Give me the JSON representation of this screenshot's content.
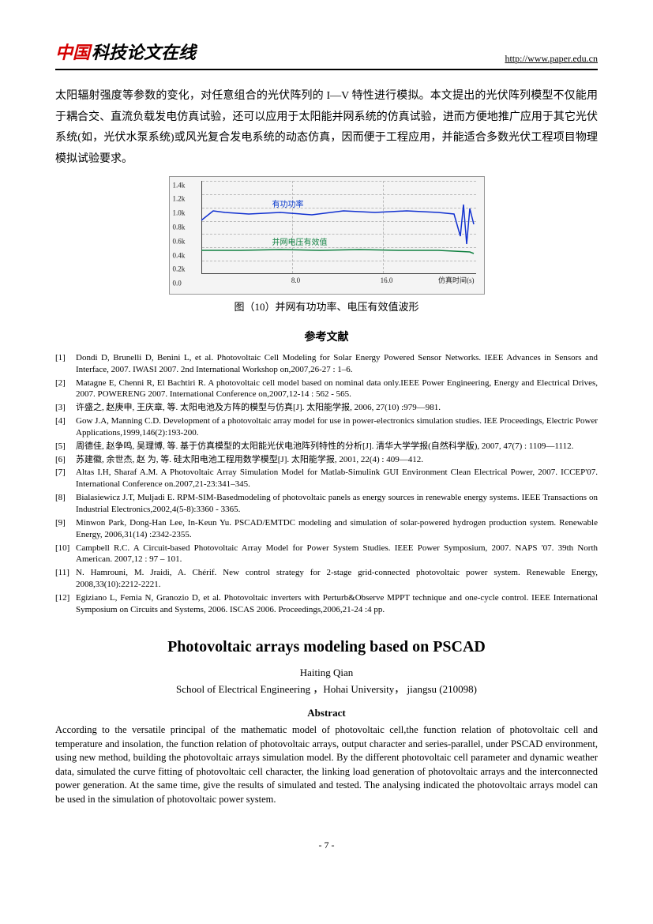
{
  "header": {
    "logo_red": "中国",
    "logo_black": "科技论文在线",
    "url": "http://www.paper.edu.cn"
  },
  "paragraph": "太阳辐射强度等参数的变化，对任意组合的光伏阵列的 I—V 特性进行模拟。本文提出的光伏阵列模型不仅能用于耦合交、直流负载发电仿真试验，还可以应用于太阳能并网系统的仿真试验，进而方便地推广应用于其它光伏系统(如，光伏水泵系统)或风光复合发电系统的动态仿真，因而便于工程应用，并能适合多数光伏工程项目物理模拟试验要求。",
  "chart": {
    "ylim": [
      0,
      1.4
    ],
    "ytick_step": 0.2,
    "yticks": [
      "0.0",
      "0.2k",
      "0.4k",
      "0.6k",
      "0.8k",
      "1.0k",
      "1.2k",
      "1.4k"
    ],
    "xticks": [
      "8.0",
      "16.0"
    ],
    "x_axis_title": "仿真时间(s)",
    "legend1": "有功功率",
    "legend2": "并网电压有效值",
    "series1_color": "#1030d0",
    "series2_color": "#108040",
    "grid_color": "#bbbbbb",
    "bg_color": "#f4f4f4",
    "series1_y_approx": 0.9,
    "series2_y_approx": 0.38
  },
  "figure_caption": "图（10）并网有功功率、电压有效值波形",
  "refs_title": "参考文献",
  "references": [
    "Dondi D, Brunelli D, Benini L, et al. Photovoltaic Cell Modeling for Solar Energy Powered Sensor Networks. IEEE Advances in Sensors and Interface, 2007. IWASI 2007. 2nd International Workshop on,2007,26-27 : 1–6.",
    "Matagne E, Chenni R, El Bachtiri R. A photovoltaic cell model based on nominal data only.IEEE Power Engineering, Energy and Electrical Drives, 2007. POWERENG 2007. International Conference on,2007,12-14 : 562 - 565.",
    "许盛之, 赵庚申, 王庆章, 等.  太阳电池及方阵的模型与仿真[J]. 太阳能学报, 2006, 27(10) :979—981.",
    "Gow J.A, Manning C.D. Development of a photovoltaic array model for use in power-electronics simulation studies. IEE Proceedings, Electric Power Applications,1999,146(2):193-200.",
    "周德佳, 赵争鸣, 吴理博, 等.  基于仿真模型的太阳能光伏电池阵列特性的分析[J]. 清华大学学报(自然科学版), 2007, 47(7) : 1109—1112.",
    "苏建徽, 余世杰, 赵   为, 等.  硅太阳电池工程用数学模型[J]. 太阳能学报, 2001, 22(4) : 409—412.",
    "Altas I.H, Sharaf A.M. A Photovoltaic Array Simulation Model for Matlab-Simulink GUI Environment Clean Electrical Power, 2007. ICCEP'07. International Conference on.2007,21-23:341–345.",
    "Bialasiewicz J.T, Muljadi E. RPM-SIM-Basedmodeling of photovoltaic panels as energy sources in renewable energy systems. IEEE Transactions on Industrial Electronics,2002,4(5-8):3360 - 3365.",
    "Minwon Park, Dong-Han Lee, In-Keun Yu. PSCAD/EMTDC modeling and simulation of solar-powered hydrogen production system. Renewable Energy, 2006,31(14) :2342-2355.",
    "Campbell R.C. A Circuit-based Photovoltaic Array Model for Power System Studies. IEEE Power Symposium, 2007. NAPS '07. 39th North American. 2007,12 : 97 – 101.",
    "N. Hamrouni, M. Jraidi, A. Chérif. New control strategy for 2-stage grid-connected photovoltaic power system. Renewable Energy, 2008,33(10):2212-2221.",
    "Egiziano L, Femia N, Granozio D, et al. Photovoltaic inverters with Perturb&Observe MPPT technique and one-cycle control. IEEE International Symposium on Circuits and Systems, 2006. ISCAS 2006. Proceedings,2006,21-24 :4 pp."
  ],
  "english": {
    "title": "Photovoltaic arrays modeling based on PSCAD",
    "author": "Haiting Qian",
    "affil": "School of Electrical Engineering ，Hohai University，  jiangsu (210098)",
    "abstract_label": "Abstract",
    "abstract": "According to the versatile principal of the mathematic model of photovoltaic cell,the function relation of photovoltaic cell and temperature and insolation, the function relation of photovoltaic arrays, output character and series-parallel, under PSCAD environment, using new method, building the photovoltaic arrays simulation model. By the different photovoltaic cell parameter and dynamic weather data, simulated the curve fitting of photovoltaic cell character, the linking load generation of photovoltaic arrays and the interconnected power generation. At the same time, give the results of simulated and tested. The analysing indicated the photovoltaic arrays model can be used in the simulation of photovoltaic power system."
  },
  "page_number": "- 7 -"
}
